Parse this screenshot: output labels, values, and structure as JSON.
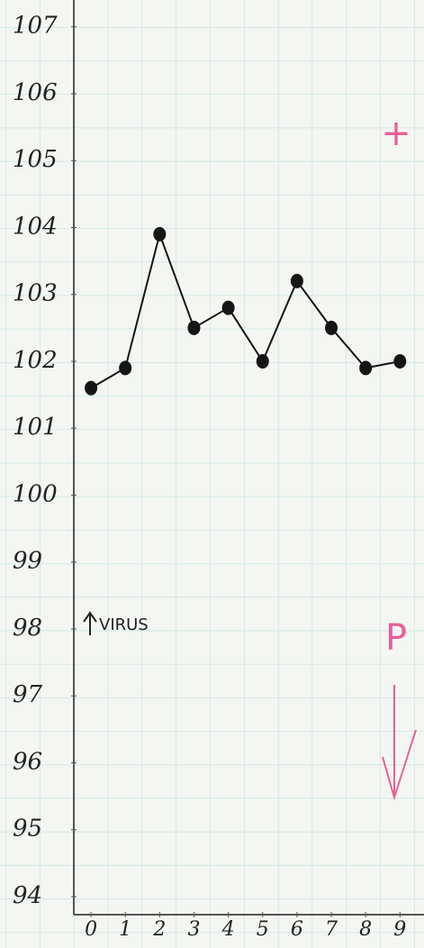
{
  "chart_data": {
    "type": "line",
    "x": [
      0,
      1,
      2,
      3,
      4,
      5,
      6,
      7,
      8,
      9
    ],
    "series": [
      {
        "color": "#151515",
        "values": [
          101.6,
          101.9,
          103.9,
          102.5,
          102.8,
          102.0,
          103.2,
          102.5,
          101.9,
          102.0
        ]
      }
    ],
    "xlim": [
      -0.5,
      9.7
    ],
    "xticks": [
      0,
      1,
      2,
      3,
      4,
      5,
      6,
      7,
      8,
      9
    ],
    "ylim": [
      94,
      107.4
    ],
    "yticks": [
      94,
      95,
      96,
      97,
      98,
      99,
      100,
      101,
      102,
      103,
      104,
      105,
      106,
      107
    ],
    "annotations": {
      "virus": "VIRUS",
      "plus": "+",
      "p": "P"
    }
  }
}
